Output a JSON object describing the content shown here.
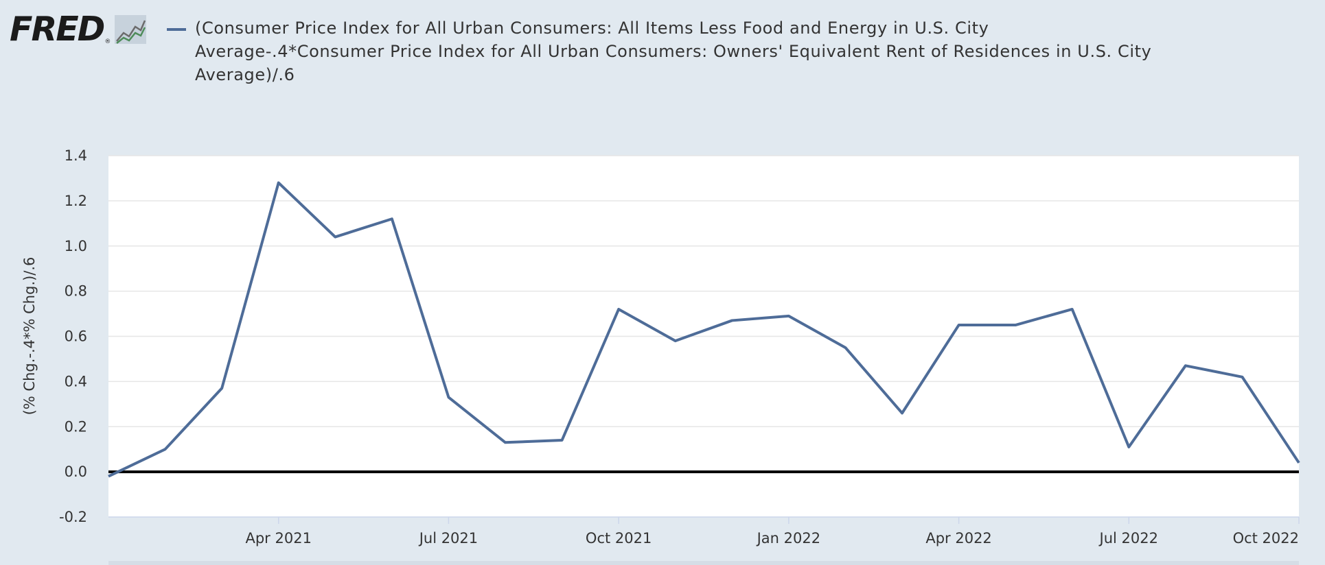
{
  "logo": {
    "text": "FRED",
    "registered": "®"
  },
  "legend": {
    "color": "#4e6c98"
  },
  "chart_data": {
    "type": "line",
    "title": "(Consumer Price Index for All Urban Consumers: All Items Less Food and Energy in U.S. City Average-.4*Consumer Price Index for All Urban Consumers: Owners' Equivalent Rent of Residences in U.S. City Average)/.6",
    "ylabel": "(% Chg.-.4*% Chg.)/.6",
    "xlabel": "",
    "ylim": [
      -0.2,
      1.4
    ],
    "yticks": [
      -0.2,
      0.0,
      0.2,
      0.4,
      0.6,
      0.8,
      1.0,
      1.2,
      1.4
    ],
    "ytick_labels": [
      "-0.2",
      "0.0",
      "0.2",
      "0.4",
      "0.6",
      "0.8",
      "1.0",
      "1.2",
      "1.4"
    ],
    "x_start": "Jan 2021",
    "x_end": "Oct 2022",
    "xticks": [
      {
        "label": "Apr 2021",
        "index": 3
      },
      {
        "label": "Jul 2021",
        "index": 6
      },
      {
        "label": "Oct 2021",
        "index": 9
      },
      {
        "label": "Jan 2022",
        "index": 12
      },
      {
        "label": "Apr 2022",
        "index": 15
      },
      {
        "label": "Jul 2022",
        "index": 18
      },
      {
        "label": "Oct 2022",
        "index": 21
      }
    ],
    "series": [
      {
        "name": "(CPI Less Food and Energy - .4*CPI OER)/.6",
        "color": "#4e6c98",
        "x": [
          "Jan 2021",
          "Feb 2021",
          "Mar 2021",
          "Apr 2021",
          "May 2021",
          "Jun 2021",
          "Jul 2021",
          "Aug 2021",
          "Sep 2021",
          "Oct 2021",
          "Nov 2021",
          "Dec 2021",
          "Jan 2022",
          "Feb 2022",
          "Mar 2022",
          "Apr 2022",
          "May 2022",
          "Jun 2022",
          "Jul 2022",
          "Aug 2022",
          "Sep 2022",
          "Oct 2022"
        ],
        "values": [
          -0.02,
          0.1,
          0.37,
          1.28,
          1.04,
          1.12,
          0.33,
          0.13,
          0.14,
          0.72,
          0.58,
          0.67,
          0.69,
          0.55,
          0.26,
          0.65,
          0.65,
          0.72,
          0.11,
          0.47,
          0.42,
          0.04
        ]
      }
    ],
    "zero_line": true,
    "grid": true
  }
}
